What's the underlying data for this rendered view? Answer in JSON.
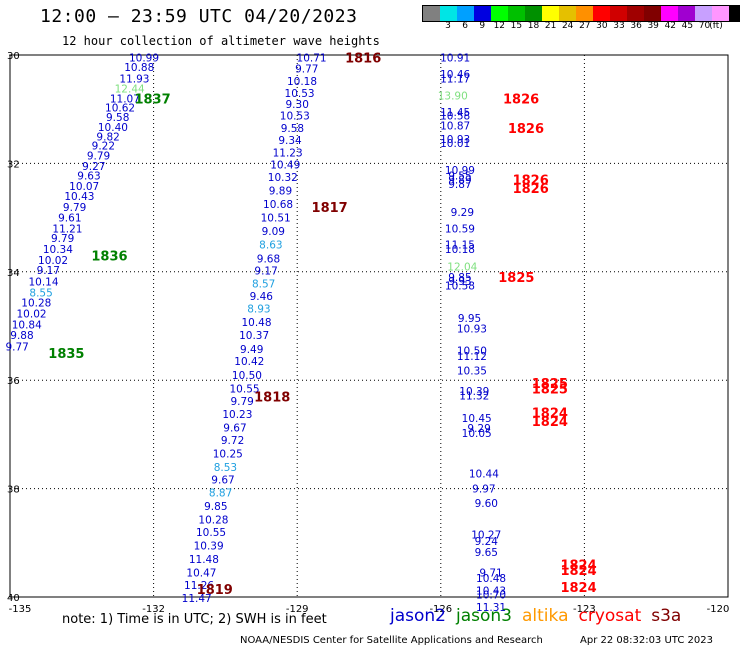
{
  "header": {
    "title": "12:00 – 23:59 UTC 04/20/2023",
    "subtitle": "12 hour collection of altimeter wave heights"
  },
  "legend": {
    "unit": "(ft)",
    "swatches": [
      "#808080",
      "#00e5e5",
      "#00a0ff",
      "#0000e0",
      "#00ff00",
      "#00c000",
      "#009000",
      "#ffff00",
      "#e5c000",
      "#ff9000",
      "#ff0000",
      "#d00000",
      "#a00000",
      "#800000",
      "#ff00ff",
      "#a000d0",
      "#c8a0ff",
      "#ff96ff",
      "#000000"
    ],
    "labels": [
      "3",
      "6",
      "9",
      "12",
      "15",
      "18",
      "21",
      "24",
      "27",
      "30",
      "33",
      "36",
      "39",
      "42",
      "45",
      "70"
    ]
  },
  "map": {
    "lon_ticks": [
      "-135",
      "-132",
      "-129",
      "-126",
      "-123",
      "-120"
    ],
    "lat_ticks": [
      "30",
      "32",
      "34",
      "36",
      "38",
      "40"
    ],
    "lat_tick_values": [
      30,
      32,
      34,
      36,
      38,
      40
    ],
    "lon_tick_values": [
      -135,
      -132,
      -129,
      -126,
      -123,
      -120
    ],
    "lat_range": [
      30,
      40
    ],
    "lon_range": [
      -135,
      -120
    ]
  },
  "colors": {
    "jason2": "#0000cc",
    "jason3": "#008000",
    "altika": "#ff9900",
    "cryosat": "#ff0000",
    "s3a": "#800000",
    "swh_light_blue": "#20a0e0",
    "swh_light_green": "#80e080"
  },
  "tracks": [
    {
      "sat": "jason3",
      "time_label": "1837",
      "label_pos": [
        -132.4,
        30.8
      ]
    },
    {
      "sat": "jason3",
      "time_label": "1836",
      "label_pos": [
        -133.3,
        33.7
      ]
    },
    {
      "sat": "jason3",
      "time_label": "1835",
      "label_pos": [
        -134.2,
        35.5
      ]
    },
    {
      "sat": "s3a",
      "time_label": "1816",
      "label_pos": [
        -128.0,
        30.05
      ]
    },
    {
      "sat": "s3a",
      "time_label": "1817",
      "label_pos": [
        -128.7,
        32.8
      ]
    },
    {
      "sat": "s3a",
      "time_label": "1818",
      "label_pos": [
        -129.9,
        36.3
      ]
    },
    {
      "sat": "s3a",
      "time_label": "1819",
      "label_pos": [
        -131.1,
        39.85
      ]
    },
    {
      "sat": "cryosat",
      "time_label": "1826",
      "label_pos": [
        -124.7,
        30.8
      ]
    },
    {
      "sat": "cryosat",
      "time_label": "1826",
      "label_pos": [
        -124.6,
        31.35
      ]
    },
    {
      "sat": "cryosat",
      "time_label": "1826",
      "label_pos": [
        -124.5,
        32.3
      ]
    },
    {
      "sat": "cryosat",
      "time_label": "1826",
      "label_pos": [
        -124.5,
        32.45
      ]
    },
    {
      "sat": "cryosat",
      "time_label": "1825",
      "label_pos": [
        -124.8,
        34.1
      ]
    },
    {
      "sat": "cryosat",
      "time_label": "1825",
      "label_pos": [
        -124.1,
        36.05
      ]
    },
    {
      "sat": "cryosat",
      "time_label": "1825",
      "label_pos": [
        -124.1,
        36.15
      ]
    },
    {
      "sat": "cryosat",
      "time_label": "1824",
      "label_pos": [
        -124.1,
        36.6
      ]
    },
    {
      "sat": "cryosat",
      "time_label": "1824",
      "label_pos": [
        -124.1,
        36.75
      ]
    },
    {
      "sat": "cryosat",
      "time_label": "1824",
      "label_pos": [
        -123.5,
        39.4
      ]
    },
    {
      "sat": "cryosat",
      "time_label": "1824",
      "label_pos": [
        -123.5,
        39.5
      ]
    },
    {
      "sat": "cryosat",
      "time_label": "1824",
      "label_pos": [
        -123.5,
        39.82
      ]
    }
  ],
  "observations": [
    {
      "lon": -132.2,
      "lat": 30.05,
      "v": "10.99",
      "c": "jason2"
    },
    {
      "lon": -132.3,
      "lat": 30.22,
      "v": "10.88",
      "c": "jason2"
    },
    {
      "lon": -132.4,
      "lat": 30.43,
      "v": "11.93",
      "c": "jason2"
    },
    {
      "lon": -132.5,
      "lat": 30.62,
      "v": "12.44",
      "c": "swh_light_green"
    },
    {
      "lon": -132.6,
      "lat": 30.8,
      "v": "11.07",
      "c": "jason2"
    },
    {
      "lon": -132.7,
      "lat": 30.97,
      "v": "10.62",
      "c": "jason2"
    },
    {
      "lon": -132.75,
      "lat": 31.14,
      "v": "9.58",
      "c": "jason2"
    },
    {
      "lon": -132.85,
      "lat": 31.33,
      "v": "10.40",
      "c": "jason2"
    },
    {
      "lon": -132.95,
      "lat": 31.5,
      "v": "9.82",
      "c": "jason2"
    },
    {
      "lon": -133.05,
      "lat": 31.67,
      "v": "9.22",
      "c": "jason2"
    },
    {
      "lon": -133.15,
      "lat": 31.85,
      "v": "9.79",
      "c": "jason2"
    },
    {
      "lon": -133.25,
      "lat": 32.05,
      "v": "9.27",
      "c": "jason2"
    },
    {
      "lon": -133.35,
      "lat": 32.22,
      "v": "9.63",
      "c": "jason2"
    },
    {
      "lon": -133.45,
      "lat": 32.42,
      "v": "10.07",
      "c": "jason2"
    },
    {
      "lon": -133.55,
      "lat": 32.6,
      "v": "10.43",
      "c": "jason2"
    },
    {
      "lon": -133.65,
      "lat": 32.8,
      "v": "9.79",
      "c": "jason2"
    },
    {
      "lon": -133.75,
      "lat": 33.0,
      "v": "9.61",
      "c": "jason2"
    },
    {
      "lon": -133.8,
      "lat": 33.2,
      "v": "11.21",
      "c": "jason2"
    },
    {
      "lon": -133.9,
      "lat": 33.38,
      "v": "9.79",
      "c": "jason2"
    },
    {
      "lon": -134.0,
      "lat": 33.58,
      "v": "10.34",
      "c": "jason2"
    },
    {
      "lon": -134.1,
      "lat": 33.78,
      "v": "10.02",
      "c": "jason2"
    },
    {
      "lon": -134.2,
      "lat": 33.97,
      "v": "9.17",
      "c": "jason2"
    },
    {
      "lon": -134.3,
      "lat": 34.18,
      "v": "10.14",
      "c": "jason2"
    },
    {
      "lon": -134.35,
      "lat": 34.38,
      "v": "8.55",
      "c": "swh_light_blue"
    },
    {
      "lon": -134.45,
      "lat": 34.57,
      "v": "10.28",
      "c": "jason2"
    },
    {
      "lon": -134.55,
      "lat": 34.77,
      "v": "10.02",
      "c": "jason2"
    },
    {
      "lon": -134.65,
      "lat": 34.97,
      "v": "10.84",
      "c": "jason2"
    },
    {
      "lon": -134.75,
      "lat": 35.17,
      "v": "9.88",
      "c": "jason2"
    },
    {
      "lon": -134.85,
      "lat": 35.38,
      "v": "9.77",
      "c": "jason2"
    },
    {
      "lon": -128.7,
      "lat": 30.05,
      "v": "10.71",
      "c": "jason2"
    },
    {
      "lon": -128.8,
      "lat": 30.25,
      "v": "9.77",
      "c": "jason2"
    },
    {
      "lon": -128.9,
      "lat": 30.48,
      "v": "10.18",
      "c": "jason2"
    },
    {
      "lon": -128.95,
      "lat": 30.7,
      "v": "10.53",
      "c": "jason2"
    },
    {
      "lon": -129.0,
      "lat": 30.9,
      "v": "9.30",
      "c": "jason2"
    },
    {
      "lon": -129.05,
      "lat": 31.12,
      "v": "10.53",
      "c": "jason2"
    },
    {
      "lon": -129.1,
      "lat": 31.35,
      "v": "9.58",
      "c": "jason2"
    },
    {
      "lon": -129.15,
      "lat": 31.57,
      "v": "9.34",
      "c": "jason2"
    },
    {
      "lon": -129.2,
      "lat": 31.8,
      "v": "11.23",
      "c": "jason2"
    },
    {
      "lon": -129.25,
      "lat": 32.02,
      "v": "10.49",
      "c": "jason2"
    },
    {
      "lon": -129.3,
      "lat": 32.25,
      "v": "10.32",
      "c": "jason2"
    },
    {
      "lon": -129.35,
      "lat": 32.5,
      "v": "9.89",
      "c": "jason2"
    },
    {
      "lon": -129.4,
      "lat": 32.75,
      "v": "10.68",
      "c": "jason2"
    },
    {
      "lon": -129.45,
      "lat": 33.0,
      "v": "10.51",
      "c": "jason2"
    },
    {
      "lon": -129.5,
      "lat": 33.25,
      "v": "9.09",
      "c": "jason2"
    },
    {
      "lon": -129.55,
      "lat": 33.5,
      "v": "8.63",
      "c": "swh_light_blue"
    },
    {
      "lon": -129.6,
      "lat": 33.75,
      "v": "9.68",
      "c": "jason2"
    },
    {
      "lon": -129.65,
      "lat": 33.98,
      "v": "9.17",
      "c": "jason2"
    },
    {
      "lon": -129.7,
      "lat": 34.22,
      "v": "8.57",
      "c": "swh_light_blue"
    },
    {
      "lon": -129.75,
      "lat": 34.45,
      "v": "9.46",
      "c": "jason2"
    },
    {
      "lon": -129.8,
      "lat": 34.68,
      "v": "8.93",
      "c": "swh_light_blue"
    },
    {
      "lon": -129.85,
      "lat": 34.93,
      "v": "10.48",
      "c": "jason2"
    },
    {
      "lon": -129.9,
      "lat": 35.17,
      "v": "10.37",
      "c": "jason2"
    },
    {
      "lon": -129.95,
      "lat": 35.42,
      "v": "9.49",
      "c": "jason2"
    },
    {
      "lon": -130.0,
      "lat": 35.65,
      "v": "10.42",
      "c": "jason2"
    },
    {
      "lon": -130.05,
      "lat": 35.9,
      "v": "10.50",
      "c": "jason2"
    },
    {
      "lon": -130.1,
      "lat": 36.15,
      "v": "10.55",
      "c": "jason2"
    },
    {
      "lon": -130.15,
      "lat": 36.38,
      "v": "9.79",
      "c": "jason2"
    },
    {
      "lon": -130.25,
      "lat": 36.62,
      "v": "10.23",
      "c": "jason2"
    },
    {
      "lon": -130.3,
      "lat": 36.87,
      "v": "9.67",
      "c": "jason2"
    },
    {
      "lon": -130.35,
      "lat": 37.1,
      "v": "9.72",
      "c": "jason2"
    },
    {
      "lon": -130.45,
      "lat": 37.35,
      "v": "10.25",
      "c": "jason2"
    },
    {
      "lon": -130.5,
      "lat": 37.6,
      "v": "8.53",
      "c": "swh_light_blue"
    },
    {
      "lon": -130.55,
      "lat": 37.83,
      "v": "9.67",
      "c": "jason2"
    },
    {
      "lon": -130.6,
      "lat": 38.07,
      "v": "8.87",
      "c": "swh_light_blue"
    },
    {
      "lon": -130.7,
      "lat": 38.32,
      "v": "9.85",
      "c": "jason2"
    },
    {
      "lon": -130.75,
      "lat": 38.57,
      "v": "10.28",
      "c": "jason2"
    },
    {
      "lon": -130.8,
      "lat": 38.8,
      "v": "10.55",
      "c": "jason2"
    },
    {
      "lon": -130.85,
      "lat": 39.05,
      "v": "10.39",
      "c": "jason2"
    },
    {
      "lon": -130.95,
      "lat": 39.3,
      "v": "11.48",
      "c": "jason2"
    },
    {
      "lon": -131.0,
      "lat": 39.55,
      "v": "10.47",
      "c": "jason2"
    },
    {
      "lon": -131.05,
      "lat": 39.78,
      "v": "11.26",
      "c": "jason2"
    },
    {
      "lon": -131.1,
      "lat": 40.02,
      "v": "11.47",
      "c": "jason2"
    },
    {
      "lon": -125.7,
      "lat": 30.05,
      "v": "10.91",
      "c": "jason2"
    },
    {
      "lon": -125.7,
      "lat": 30.35,
      "v": "10.46",
      "c": "jason2"
    },
    {
      "lon": -125.7,
      "lat": 30.43,
      "v": "11.17",
      "c": "jason2"
    },
    {
      "lon": -125.75,
      "lat": 30.75,
      "v": "13.90",
      "c": "swh_light_green"
    },
    {
      "lon": -125.7,
      "lat": 31.05,
      "v": "11.45",
      "c": "jason2"
    },
    {
      "lon": -125.7,
      "lat": 31.12,
      "v": "10.58",
      "c": "jason2"
    },
    {
      "lon": -125.7,
      "lat": 31.3,
      "v": "10.87",
      "c": "jason2"
    },
    {
      "lon": -125.7,
      "lat": 31.55,
      "v": "10.93",
      "c": "jason2"
    },
    {
      "lon": -125.7,
      "lat": 31.62,
      "v": "10.01",
      "c": "jason2"
    },
    {
      "lon": -125.6,
      "lat": 32.12,
      "v": "10.99",
      "c": "jason2"
    },
    {
      "lon": -125.6,
      "lat": 32.22,
      "v": "9.55",
      "c": "jason2"
    },
    {
      "lon": -125.6,
      "lat": 32.3,
      "v": "9.89",
      "c": "jason2"
    },
    {
      "lon": -125.6,
      "lat": 32.38,
      "v": "9.87",
      "c": "jason2"
    },
    {
      "lon": -125.55,
      "lat": 32.9,
      "v": "9.29",
      "c": "jason2"
    },
    {
      "lon": -125.6,
      "lat": 33.2,
      "v": "10.59",
      "c": "jason2"
    },
    {
      "lon": -125.6,
      "lat": 33.5,
      "v": "11.15",
      "c": "jason2"
    },
    {
      "lon": -125.6,
      "lat": 33.58,
      "v": "10.18",
      "c": "jason2"
    },
    {
      "lon": -125.55,
      "lat": 33.9,
      "v": "12.04",
      "c": "swh_light_green"
    },
    {
      "lon": -125.6,
      "lat": 34.1,
      "v": "9.85",
      "c": "jason2"
    },
    {
      "lon": -125.6,
      "lat": 34.17,
      "v": "9.93",
      "c": "jason2"
    },
    {
      "lon": -125.6,
      "lat": 34.25,
      "v": "10.58",
      "c": "jason2"
    },
    {
      "lon": -125.4,
      "lat": 34.85,
      "v": "9.95",
      "c": "jason2"
    },
    {
      "lon": -125.35,
      "lat": 35.05,
      "v": "10.93",
      "c": "jason2"
    },
    {
      "lon": -125.35,
      "lat": 35.45,
      "v": "10.50",
      "c": "jason2"
    },
    {
      "lon": -125.35,
      "lat": 35.55,
      "v": "11.12",
      "c": "jason2"
    },
    {
      "lon": -125.35,
      "lat": 35.82,
      "v": "10.35",
      "c": "jason2"
    },
    {
      "lon": -125.3,
      "lat": 36.2,
      "v": "10.39",
      "c": "jason2"
    },
    {
      "lon": -125.3,
      "lat": 36.28,
      "v": "11.32",
      "c": "jason2"
    },
    {
      "lon": -125.25,
      "lat": 36.7,
      "v": "10.45",
      "c": "jason2"
    },
    {
      "lon": -125.2,
      "lat": 36.88,
      "v": "9.29",
      "c": "jason2"
    },
    {
      "lon": -125.25,
      "lat": 36.97,
      "v": "10.05",
      "c": "jason2"
    },
    {
      "lon": -125.1,
      "lat": 37.72,
      "v": "10.44",
      "c": "jason2"
    },
    {
      "lon": -125.1,
      "lat": 38.0,
      "v": "9.97",
      "c": "jason2"
    },
    {
      "lon": -125.05,
      "lat": 38.27,
      "v": "9.60",
      "c": "jason2"
    },
    {
      "lon": -125.05,
      "lat": 38.85,
      "v": "10.27",
      "c": "jason2"
    },
    {
      "lon": -125.05,
      "lat": 38.97,
      "v": "9.24",
      "c": "jason2"
    },
    {
      "lon": -125.05,
      "lat": 39.17,
      "v": "9.65",
      "c": "jason2"
    },
    {
      "lon": -124.95,
      "lat": 39.55,
      "v": "9.71",
      "c": "jason2"
    },
    {
      "lon": -124.95,
      "lat": 39.65,
      "v": "10.48",
      "c": "jason2"
    },
    {
      "lon": -124.95,
      "lat": 39.88,
      "v": "10.43",
      "c": "jason2"
    },
    {
      "lon": -124.95,
      "lat": 39.95,
      "v": "10.70",
      "c": "jason2"
    },
    {
      "lon": -124.95,
      "lat": 40.18,
      "v": "11.31",
      "c": "jason2"
    }
  ],
  "satellites": [
    {
      "name": "jason2",
      "key": "jason2"
    },
    {
      "name": "jason3",
      "key": "jason3"
    },
    {
      "name": "altika",
      "key": "altika"
    },
    {
      "name": "cryosat",
      "key": "cryosat"
    },
    {
      "name": "s3a",
      "key": "s3a"
    }
  ],
  "footer": {
    "note": "note:  1) Time is in UTC;  2) SWH is in feet",
    "credit": "NOAA/NESDIS Center for Satellite Applications and Research",
    "generated": "Apr 22 08:32:03 UTC 2023"
  }
}
